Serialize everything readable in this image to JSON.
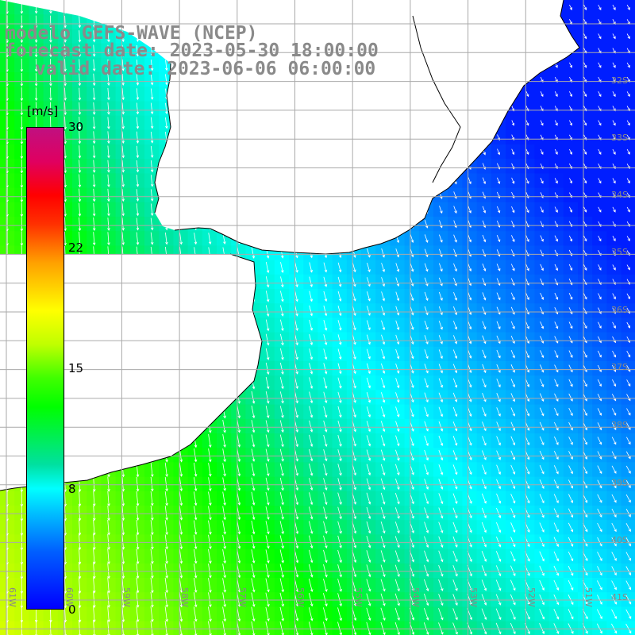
{
  "title": {
    "line1": "modelo GEFS-WAVE (NCEP)",
    "line2": "forecast date: 2023-05-30 18:00:00",
    "line3": "valid date: 2023-06-06 06:00:00"
  },
  "colorbar": {
    "unit": "[m/s]",
    "ticks": [
      "30",
      "22",
      "15",
      "8",
      "0"
    ],
    "tick_values": [
      30,
      22,
      15,
      8,
      0
    ],
    "colors": [
      "#0000ff",
      "#00ffff",
      "#00ff00",
      "#ffff00",
      "#ff0000",
      "#c01080"
    ]
  },
  "map": {
    "lat_labels": [
      "32S",
      "33S",
      "34S",
      "35S",
      "36S",
      "37S",
      "38S",
      "39S",
      "40S",
      "41S"
    ],
    "lon_labels": [
      "61W",
      "60W",
      "59W",
      "58W",
      "57W",
      "56W",
      "55W",
      "54W",
      "53W",
      "52W",
      "51W"
    ],
    "lon_range": [
      -61.2,
      -50.4
    ],
    "lat_range": [
      -41.3,
      -30.6
    ],
    "land_color": "#ffffff",
    "grid_color": "#aaaaaa"
  }
}
